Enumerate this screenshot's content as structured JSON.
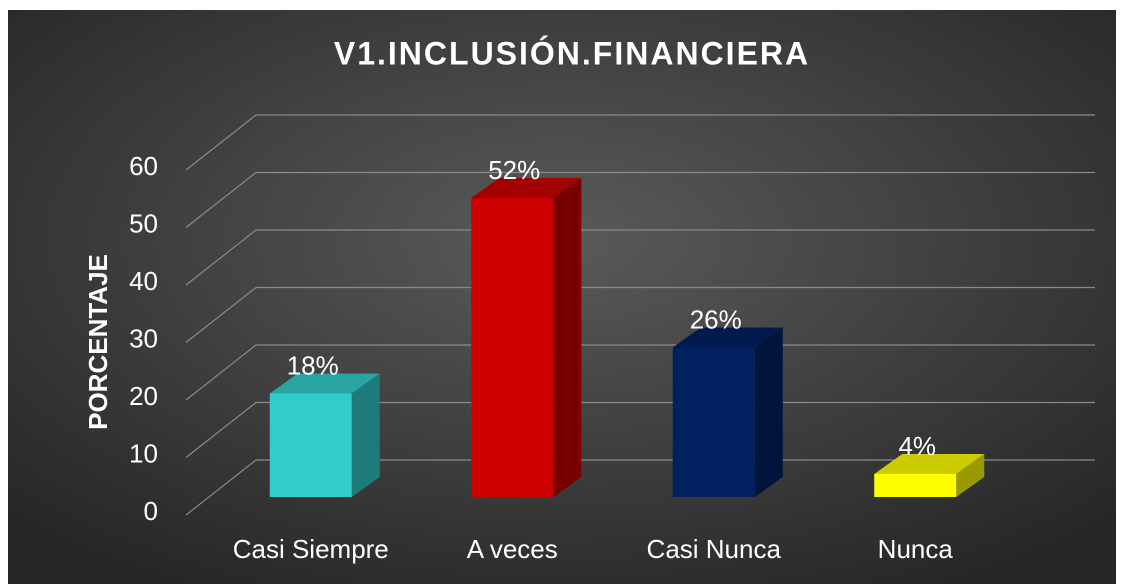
{
  "chart_data": {
    "type": "bar3d",
    "title": "V1.INCLUSIÓN.FINANCIERA",
    "y_label": "PORCENTAJE",
    "categories": [
      "Casi Siempre",
      "A veces",
      "Casi Nunca",
      "Nunca"
    ],
    "values": [
      18,
      52,
      26,
      4
    ],
    "value_labels": [
      "18%",
      "52%",
      "26%",
      "4%"
    ],
    "colors": [
      "#33cccc",
      "#cc0000",
      "#002060",
      "#ffff00"
    ],
    "ylim": [
      0,
      60
    ],
    "yticks": [
      0,
      10,
      20,
      30,
      40,
      50,
      60
    ],
    "grid": true
  }
}
